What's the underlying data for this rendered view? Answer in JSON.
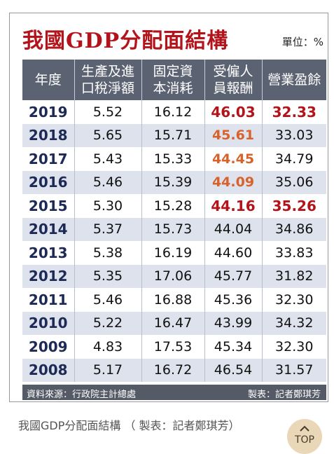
{
  "header": {
    "title": "我國GDP分配面結構",
    "unit": "單位：%"
  },
  "table": {
    "columns": [
      "年度",
      "生產及進口稅淨額",
      "固定資本消耗",
      "受僱人員報酬",
      "營業盈餘"
    ],
    "rows": [
      [
        "2019",
        "5.52",
        "16.12",
        "46.03",
        "32.33"
      ],
      [
        "2018",
        "5.65",
        "15.71",
        "45.61",
        "33.03"
      ],
      [
        "2017",
        "5.43",
        "15.33",
        "44.45",
        "34.79"
      ],
      [
        "2016",
        "5.46",
        "15.39",
        "44.09",
        "35.06"
      ],
      [
        "2015",
        "5.30",
        "15.28",
        "44.16",
        "35.26"
      ],
      [
        "2014",
        "5.37",
        "15.73",
        "44.04",
        "34.86"
      ],
      [
        "2013",
        "5.38",
        "16.19",
        "44.60",
        "33.83"
      ],
      [
        "2012",
        "5.35",
        "17.06",
        "45.77",
        "31.82"
      ],
      [
        "2011",
        "5.46",
        "16.88",
        "45.36",
        "32.30"
      ],
      [
        "2010",
        "5.22",
        "16.47",
        "43.99",
        "34.32"
      ],
      [
        "2009",
        "4.83",
        "17.53",
        "45.34",
        "32.30"
      ],
      [
        "2008",
        "5.17",
        "16.72",
        "46.54",
        "31.57"
      ]
    ]
  },
  "footer": {
    "source": "資料來源：行政院主計總處",
    "credit": "製表：記者鄭琪芳"
  },
  "caption": "我國GDP分配面結構 （ 製表：記者鄭琪芳）",
  "top_button": "TOP"
}
